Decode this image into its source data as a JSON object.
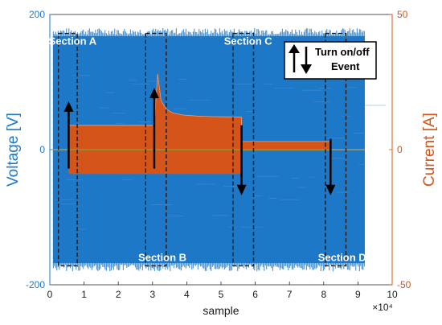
{
  "chart_data": {
    "type": "line",
    "xlabel": "sample",
    "x_exponent": "×10⁴",
    "ylabel_left": "Voltage [V]",
    "ylabel_right": "Current [A]",
    "xlim": [
      0,
      10
    ],
    "ylim_left": [
      -200,
      200
    ],
    "ylim_right": [
      -50,
      50
    ],
    "x_ticks": [
      "0",
      "1",
      "2",
      "3",
      "4",
      "5",
      "6",
      "7",
      "8",
      "9",
      "10"
    ],
    "y_left_ticks": [
      "200",
      "0",
      "-200"
    ],
    "y_right_ticks": [
      "50",
      "0",
      "-50"
    ],
    "series": [
      {
        "name": "Voltage",
        "axis": "left",
        "color": "#1f78c8",
        "x_range": [
          0.1,
          9.2
        ],
        "amplitude": 172
      },
      {
        "name": "Current",
        "axis": "right",
        "color": "#d4541a",
        "envelope_x": [
          0.1,
          0.55,
          0.55,
          3.05,
          3.05,
          3.15,
          3.25,
          3.4,
          3.6,
          3.9,
          4.3,
          4.8,
          5.3,
          5.6,
          5.6,
          8.2,
          8.2,
          9.2
        ],
        "envelope_top": [
          0,
          0,
          9,
          9,
          9,
          28,
          18,
          15,
          13.5,
          12.8,
          12.4,
          12.2,
          12.1,
          12,
          3,
          3,
          0,
          0
        ],
        "envelope_bottom": [
          0,
          0,
          -9,
          -9,
          -9,
          -9,
          -9,
          -9,
          -9,
          -9,
          -9,
          -9,
          -9,
          -9,
          -0.5,
          -0.5,
          0,
          0
        ]
      }
    ],
    "sections": [
      {
        "label": "Section A",
        "x_range": [
          0.25,
          0.8
        ],
        "label_pos": "top"
      },
      {
        "label": "Section B",
        "x_range": [
          2.8,
          3.4
        ],
        "label_pos": "bottom"
      },
      {
        "label": "Section C",
        "x_range": [
          5.35,
          5.95
        ],
        "label_pos": "top"
      },
      {
        "label": "Section D",
        "x_range": [
          8.05,
          8.65
        ],
        "label_pos": "bottom"
      }
    ],
    "events": [
      {
        "x": 0.55,
        "direction": "up"
      },
      {
        "x": 3.05,
        "direction": "up"
      },
      {
        "x": 5.6,
        "direction": "down"
      },
      {
        "x": 8.2,
        "direction": "down"
      }
    ],
    "legend": {
      "line1": "Turn on/off",
      "line2": "Event",
      "position": "top-right"
    }
  }
}
